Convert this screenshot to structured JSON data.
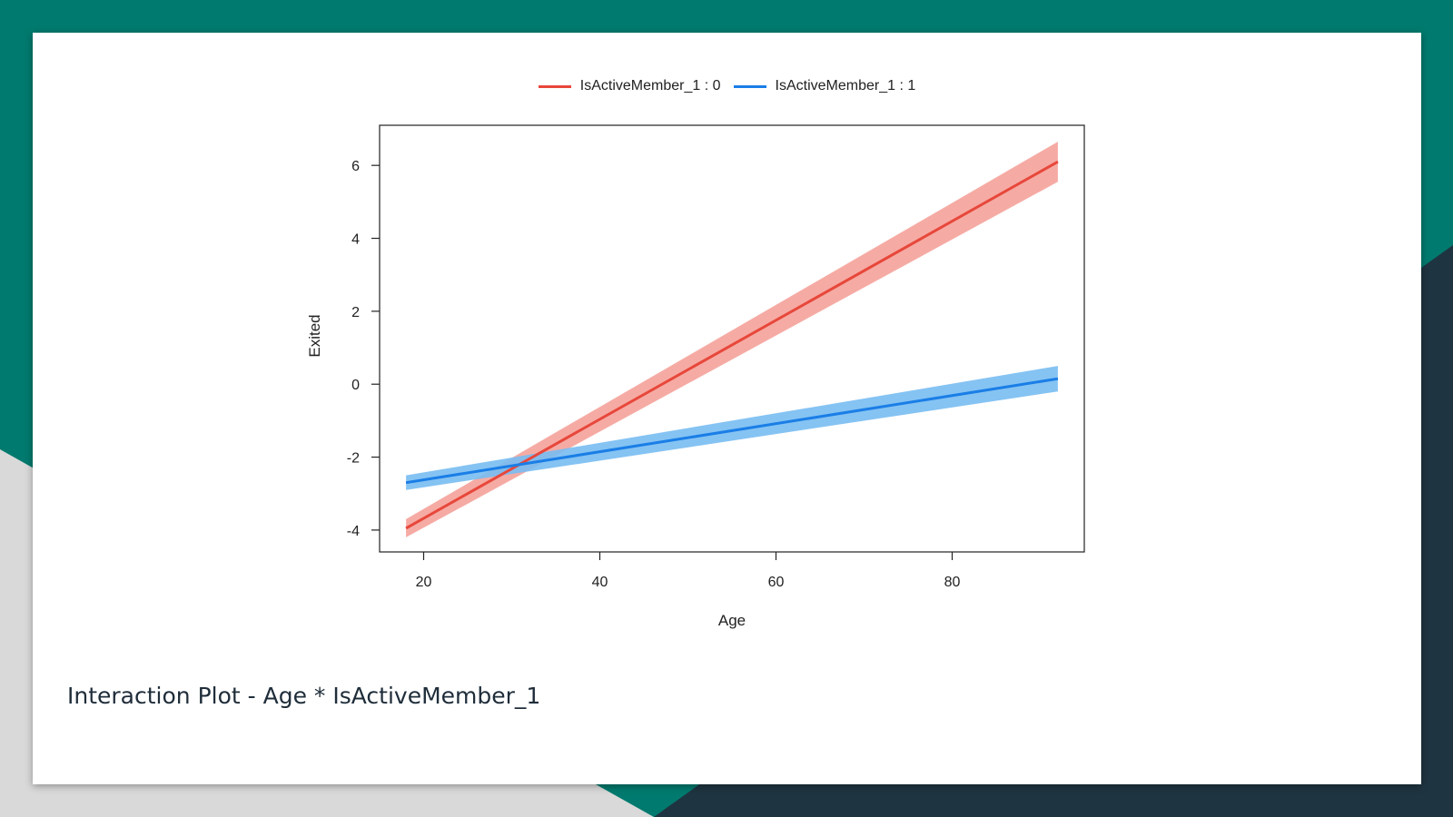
{
  "slide": {
    "caption": "Interaction Plot - Age * IsActiveMember_1",
    "colors": {
      "background_top": "#007a6e",
      "background_light": "#d9d9d9",
      "background_dark": "#1f3441",
      "card": "#ffffff"
    }
  },
  "chart_data": {
    "type": "line",
    "title": "",
    "xlabel": "Age",
    "ylabel": "Exited",
    "xlim": [
      15,
      95
    ],
    "ylim": [
      -4.6,
      7.1
    ],
    "xticks": [
      20,
      40,
      60,
      80
    ],
    "yticks": [
      -4,
      -2,
      0,
      2,
      4,
      6
    ],
    "grid": false,
    "legend_position": "top",
    "x": [
      18,
      92
    ],
    "series": [
      {
        "name": "IsActiveMember_1 : 0",
        "color": "#e8473b",
        "band_color": "#f4a29a",
        "values": [
          -3.95,
          6.1
        ],
        "lower": [
          -4.2,
          5.55
        ],
        "upper": [
          -3.7,
          6.65
        ]
      },
      {
        "name": "IsActiveMember_1 : 1",
        "color": "#1a7ee6",
        "band_color": "#78bcf2",
        "values": [
          -2.7,
          0.15
        ],
        "lower": [
          -2.9,
          -0.2
        ],
        "upper": [
          -2.5,
          0.5
        ]
      }
    ]
  }
}
